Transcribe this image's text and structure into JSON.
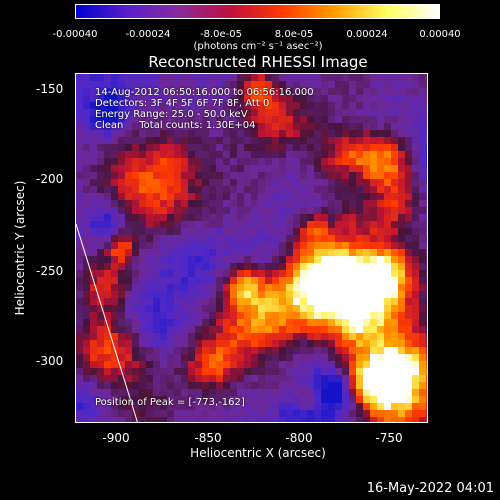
{
  "colorbar": {
    "tick_labels": [
      "-0.00040",
      "-0.00024",
      "-8.0e-05",
      "8.0e-05",
      "0.00024",
      "0.00040"
    ],
    "units": "(photons cm⁻² s⁻¹ asec⁻²)",
    "colors": [
      "#0000d0",
      "#5a1ecc",
      "#8a2a9a",
      "#c0103c",
      "#ff3a00",
      "#ffa000",
      "#ffff60",
      "#ffffff"
    ]
  },
  "plot": {
    "title": "Reconstructed RHESSI Image",
    "annotations": {
      "time_range": "14-Aug-2012 06:50:16.000 to 06:56:16.000",
      "detectors": "Detectors: 3F 4F 5F 6F 7F 8F, Att 0",
      "energy_range": "Energy Range: 25.0 - 50.0 keV",
      "method_counts": "Clean     Total counts: 1.30E+04",
      "peak_position": "Position of Peak = [-773,-162]"
    },
    "x_axis": {
      "label": "Heliocentric X (arcsec)",
      "ticks": [
        "-900",
        "-850",
        "-800",
        "-750"
      ]
    },
    "y_axis": {
      "label": "Heliocentric Y (arcsec)",
      "ticks": [
        "-150",
        "-200",
        "-250",
        "-300"
      ]
    }
  },
  "footer": {
    "timestamp": "16-May-2022 04:01"
  }
}
